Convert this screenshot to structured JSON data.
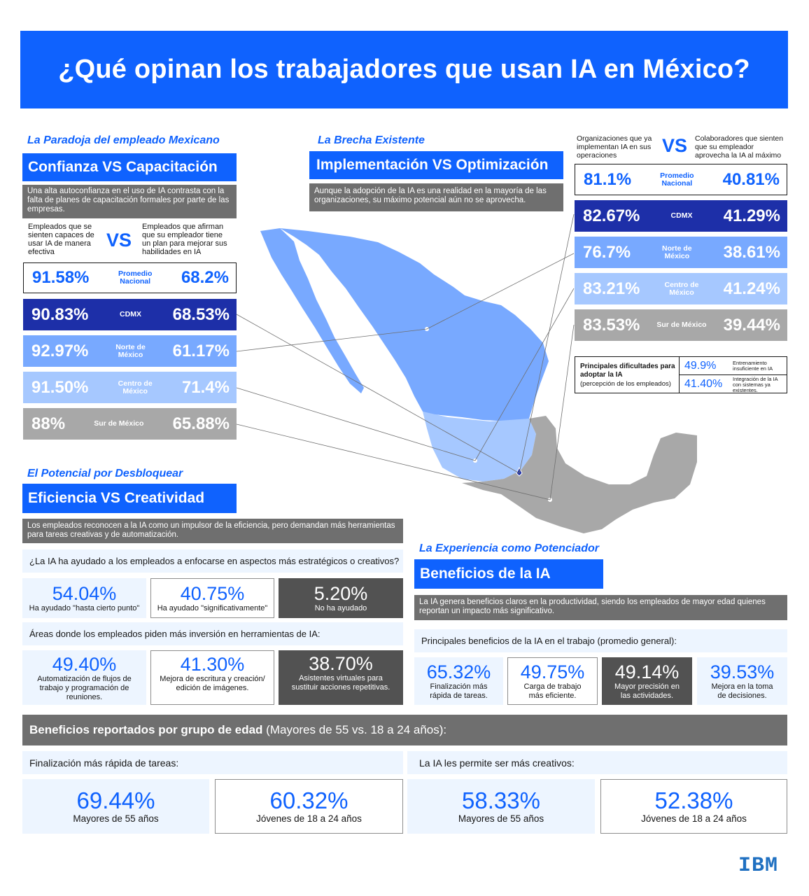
{
  "title": "¿Qué opinan los trabajadores que usan IA en México?",
  "section1": {
    "kicker": "La Paradoja del empleado Mexicano",
    "heading": "Confianza VS Capacitación",
    "description": "Una alta autoconfianza en el uso de IA contrasta con la falta de planes de capacitación formales por parte de las empresas.",
    "left_label": "Empleados que se sienten capaces de usar IA de manera efectiva",
    "vs": "VS",
    "right_label": "Empleados que afirman que su empleador tiene un plan para mejorar sus habilidades en IA",
    "rows": [
      {
        "region": "Promedio Nacional",
        "left": "91.58%",
        "right": "68.2%"
      },
      {
        "region": "CDMX",
        "left": "90.83%",
        "right": "68.53%"
      },
      {
        "region": "Norte de México",
        "left": "92.97%",
        "right": "61.17%"
      },
      {
        "region": "Centro de México",
        "left": "91.50%",
        "right": "71.4%"
      },
      {
        "region": "Sur de México",
        "left": "88%",
        "right": "65.88%"
      }
    ]
  },
  "section2": {
    "kicker": "La Brecha Existente",
    "heading": "Implementación VS Optimización",
    "description": "Aunque la adopción de la IA es una realidad en la mayoría de las organizaciones, su máximo potencial aún no se aprovecha.",
    "left_label": "Organizaciones que ya implementan IA en sus operaciones",
    "vs": "VS",
    "right_label": "Colaboradores que sienten que su empleador aprovecha la IA al máximo",
    "rows": [
      {
        "region": "Promedio Nacional",
        "left": "81.1%",
        "right": "40.81%"
      },
      {
        "region": "CDMX",
        "left": "82.67%",
        "right": "41.29%"
      },
      {
        "region": "Norte de México",
        "left": "76.7%",
        "right": "38.61%"
      },
      {
        "region": "Centro de México",
        "left": "83.21%",
        "right": "41.24%"
      },
      {
        "region": "Sur de México",
        "left": "83.53%",
        "right": "39.44%"
      }
    ],
    "difficulties": {
      "title": "Principales dificultades para adoptar la IA",
      "subtitle": "(percepción de los empleados)",
      "items": [
        {
          "value": "49.9%",
          "label": "Entrenamiento insuficiente en IA"
        },
        {
          "value": "41.40%",
          "label": "Integración de la IA con sistemas ya existentes."
        }
      ]
    }
  },
  "section3": {
    "kicker": "El Potencial por Desbloquear",
    "heading": "Eficiencia VS Creatividad",
    "description": "Los empleados reconocen a la IA como un impulsor de la eficiencia, pero demandan más herramientas para tareas creativas y de automatización.",
    "question1": "¿La IA ha ayudado a los empleados a enfocarse en aspectos más estratégicos o creativos?",
    "stats1": [
      {
        "value": "54.04%",
        "label": "Ha ayudado \"hasta cierto punto\""
      },
      {
        "value": "40.75%",
        "label": "Ha ayudado \"significativamente\""
      },
      {
        "value": "5.20%",
        "label": "No ha ayudado"
      }
    ],
    "question2": "Áreas donde los empleados piden más inversión en herramientas de IA:",
    "stats2": [
      {
        "value": "49.40%",
        "label": "Automatización de flujos de trabajo y programación de reuniones."
      },
      {
        "value": "41.30%",
        "label": "Mejora de escritura y creación/ edición de imágenes."
      },
      {
        "value": "38.70%",
        "label": "Asistentes virtuales para sustituir acciones repetitivas."
      }
    ]
  },
  "section4": {
    "kicker": "La Experiencia como Potenciador",
    "heading": "Beneficios de la IA",
    "description": "La IA genera beneficios claros en la productividad, siendo los empleados de mayor edad quienes reportan un impacto más significativo.",
    "question_bold": "Principales beneficios de la IA en el trabajo",
    "question_rest": " (promedio general):",
    "stats": [
      {
        "value": "65.32%",
        "label": "Finalización más rápida de tareas."
      },
      {
        "value": "49.75%",
        "label": "Carga de trabajo más eficiente."
      },
      {
        "value": "49.14%",
        "label": "Mayor precisión en las actividades."
      },
      {
        "value": "39.53%",
        "label": "Mejora en la toma de decisiones."
      }
    ]
  },
  "age": {
    "heading_bold": "Beneficios reportados por grupo de edad",
    "heading_rest": " (Mayores de 55 vs. 18 a 24 años):",
    "left_title": "Finalización más rápida de tareas:",
    "right_title": "La IA les permite ser más creativos:",
    "stats": [
      {
        "value": "69.44%",
        "label": "Mayores de 55 años"
      },
      {
        "value": "60.32%",
        "label": "Jóvenes de 18 a 24 años"
      },
      {
        "value": "58.33%",
        "label": "Mayores de 55 años"
      },
      {
        "value": "52.38%",
        "label": "Jóvenes de 18 a 24 años"
      }
    ]
  },
  "logo": "IBM",
  "colors": {
    "ibm_blue": "#0f62fe",
    "cdmx": "#1d2fa8",
    "norte": "#78a9ff",
    "centro": "#a6c8ff",
    "sur": "#a8a8a8",
    "dark_grey": "#6f6f6f"
  }
}
